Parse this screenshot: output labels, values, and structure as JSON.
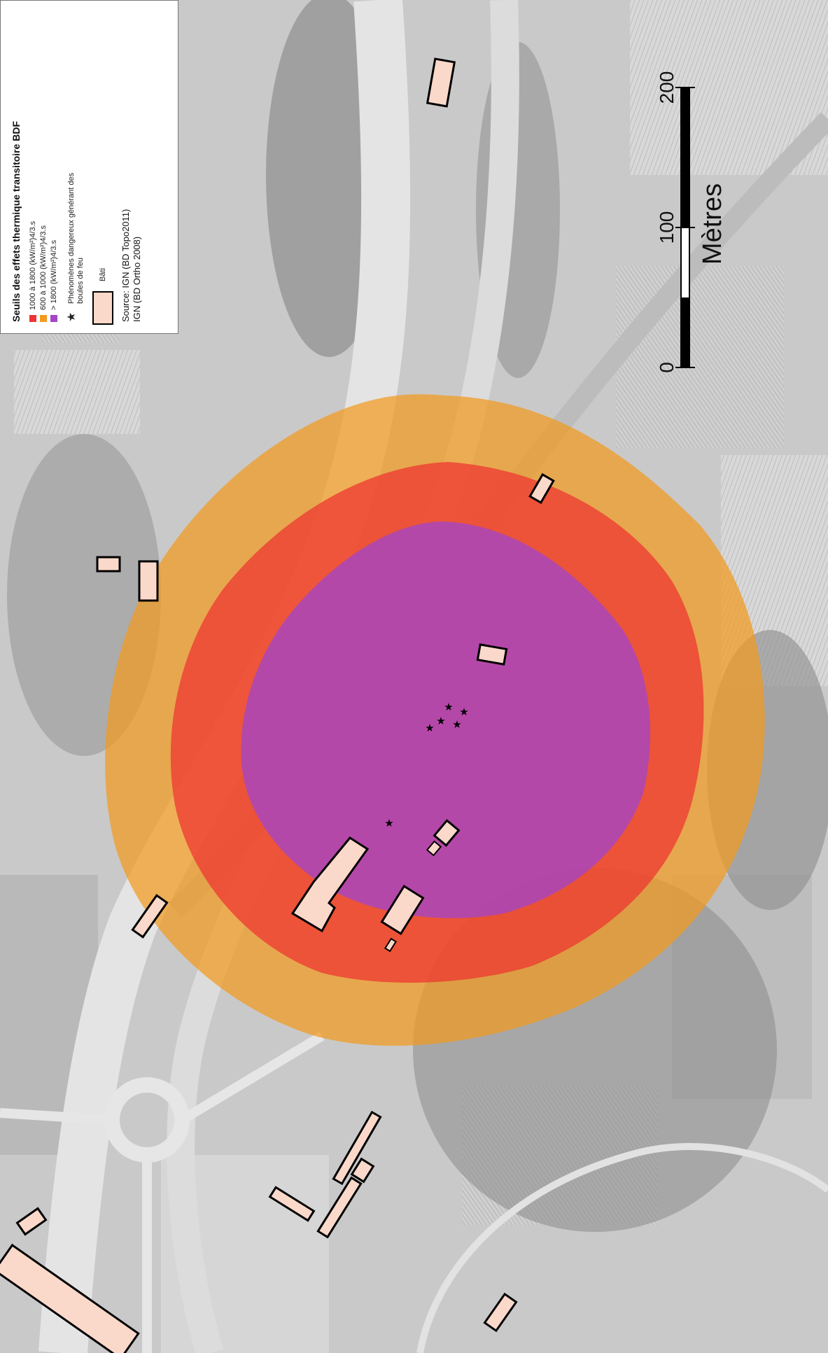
{
  "legend": {
    "title": "Seuils des effets thermique transitoire BDF",
    "classes": [
      {
        "label": "1000 à 1800 (kW/m²)4/3.s",
        "color": "#ee3333"
      },
      {
        "label": "600 à 1000 (kW/m²)4/3.s",
        "color": "#f39a1e"
      },
      {
        "label": "> 1800 (kW/m²)4/3.s",
        "color": "#a445c8"
      }
    ],
    "star_label": "Phénomènes dangereux générant des boules de feu",
    "bati_label": "Bâti",
    "source_line1": "Source: IGN (BD Topo2011)",
    "source_line2": "IGN (BD Ortho 2008)"
  },
  "scale_bar": {
    "unit": "Mètres",
    "ticks": [
      "0",
      "100",
      "200"
    ]
  },
  "map": {
    "building_fill": "#fbd9ca",
    "building_stroke": "#000000",
    "zone_outer_color": "#f39a1e",
    "zone_middle_color": "#ee3333",
    "zone_inner_color": "#a445c8",
    "basemap": "grayscale aerial orthophoto"
  }
}
